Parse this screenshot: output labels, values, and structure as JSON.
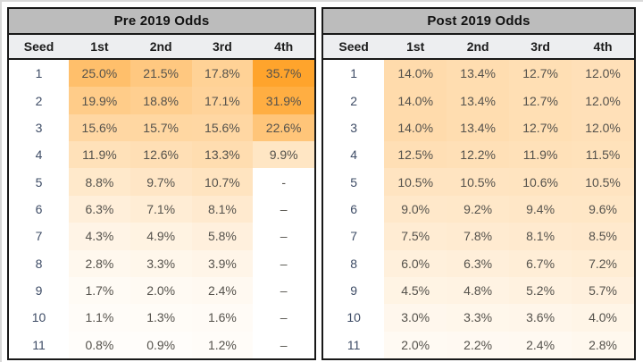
{
  "page": {
    "background": "#ffffff"
  },
  "heatmap": {
    "min_color": "#FFFFFF",
    "max_color": "#FFA42C",
    "scale_max": 35.7
  },
  "colors": {
    "title_bar_bg": "#BCBCBC",
    "header_row_bg": "#EDEEF0",
    "border": "#181818",
    "seed_text": "#3E4C66",
    "value_text": "#55524C"
  },
  "tables": [
    {
      "title": "Pre 2019 Odds",
      "columns": [
        "Seed",
        "1st",
        "2nd",
        "3rd",
        "4th"
      ],
      "rows": [
        {
          "seed": "1",
          "cells": [
            "25.0%",
            "21.5%",
            "17.8%",
            "35.7%"
          ]
        },
        {
          "seed": "2",
          "cells": [
            "19.9%",
            "18.8%",
            "17.1%",
            "31.9%"
          ]
        },
        {
          "seed": "3",
          "cells": [
            "15.6%",
            "15.7%",
            "15.6%",
            "22.6%"
          ]
        },
        {
          "seed": "4",
          "cells": [
            "11.9%",
            "12.6%",
            "13.3%",
            "9.9%"
          ]
        },
        {
          "seed": "5",
          "cells": [
            "8.8%",
            "9.7%",
            "10.7%",
            "-"
          ]
        },
        {
          "seed": "6",
          "cells": [
            "6.3%",
            "7.1%",
            "8.1%",
            "–"
          ]
        },
        {
          "seed": "7",
          "cells": [
            "4.3%",
            "4.9%",
            "5.8%",
            "–"
          ]
        },
        {
          "seed": "8",
          "cells": [
            "2.8%",
            "3.3%",
            "3.9%",
            "–"
          ]
        },
        {
          "seed": "9",
          "cells": [
            "1.7%",
            "2.0%",
            "2.4%",
            "–"
          ]
        },
        {
          "seed": "10",
          "cells": [
            "1.1%",
            "1.3%",
            "1.6%",
            "–"
          ]
        },
        {
          "seed": "11",
          "cells": [
            "0.8%",
            "0.9%",
            "1.2%",
            "–"
          ]
        }
      ]
    },
    {
      "title": "Post 2019 Odds",
      "columns": [
        "Seed",
        "1st",
        "2nd",
        "3rd",
        "4th"
      ],
      "rows": [
        {
          "seed": "1",
          "cells": [
            "14.0%",
            "13.4%",
            "12.7%",
            "12.0%"
          ]
        },
        {
          "seed": "2",
          "cells": [
            "14.0%",
            "13.4%",
            "12.7%",
            "12.0%"
          ]
        },
        {
          "seed": "3",
          "cells": [
            "14.0%",
            "13.4%",
            "12.7%",
            "12.0%"
          ]
        },
        {
          "seed": "4",
          "cells": [
            "12.5%",
            "12.2%",
            "11.9%",
            "11.5%"
          ]
        },
        {
          "seed": "5",
          "cells": [
            "10.5%",
            "10.5%",
            "10.6%",
            "10.5%"
          ]
        },
        {
          "seed": "6",
          "cells": [
            "9.0%",
            "9.2%",
            "9.4%",
            "9.6%"
          ]
        },
        {
          "seed": "7",
          "cells": [
            "7.5%",
            "7.8%",
            "8.1%",
            "8.5%"
          ]
        },
        {
          "seed": "8",
          "cells": [
            "6.0%",
            "6.3%",
            "6.7%",
            "7.2%"
          ]
        },
        {
          "seed": "9",
          "cells": [
            "4.5%",
            "4.8%",
            "5.2%",
            "5.7%"
          ]
        },
        {
          "seed": "10",
          "cells": [
            "3.0%",
            "3.3%",
            "3.6%",
            "4.0%"
          ]
        },
        {
          "seed": "11",
          "cells": [
            "2.0%",
            "2.2%",
            "2.4%",
            "2.8%"
          ]
        }
      ]
    }
  ],
  "chart_data": [
    {
      "type": "heatmap",
      "title": "Pre 2019 Odds",
      "x_categories": [
        "1st",
        "2nd",
        "3rd",
        "4th"
      ],
      "y_label": "Seed",
      "y_categories": [
        1,
        2,
        3,
        4,
        5,
        6,
        7,
        8,
        9,
        10,
        11
      ],
      "values_pct": [
        [
          25.0,
          21.5,
          17.8,
          35.7
        ],
        [
          19.9,
          18.8,
          17.1,
          31.9
        ],
        [
          15.6,
          15.7,
          15.6,
          22.6
        ],
        [
          11.9,
          12.6,
          13.3,
          9.9
        ],
        [
          8.8,
          9.7,
          10.7,
          null
        ],
        [
          6.3,
          7.1,
          8.1,
          null
        ],
        [
          4.3,
          4.9,
          5.8,
          null
        ],
        [
          2.8,
          3.3,
          3.9,
          null
        ],
        [
          1.7,
          2.0,
          2.4,
          null
        ],
        [
          1.1,
          1.3,
          1.6,
          null
        ],
        [
          0.8,
          0.9,
          1.2,
          null
        ]
      ],
      "color_scale": {
        "min_color": "#FFFFFF",
        "max_color": "#FFA42C",
        "domain": [
          0,
          35.7
        ]
      },
      "legend": "none",
      "grid": false
    },
    {
      "type": "heatmap",
      "title": "Post 2019 Odds",
      "x_categories": [
        "1st",
        "2nd",
        "3rd",
        "4th"
      ],
      "y_label": "Seed",
      "y_categories": [
        1,
        2,
        3,
        4,
        5,
        6,
        7,
        8,
        9,
        10,
        11
      ],
      "values_pct": [
        [
          14.0,
          13.4,
          12.7,
          12.0
        ],
        [
          14.0,
          13.4,
          12.7,
          12.0
        ],
        [
          14.0,
          13.4,
          12.7,
          12.0
        ],
        [
          12.5,
          12.2,
          11.9,
          11.5
        ],
        [
          10.5,
          10.5,
          10.6,
          10.5
        ],
        [
          9.0,
          9.2,
          9.4,
          9.6
        ],
        [
          7.5,
          7.8,
          8.1,
          8.5
        ],
        [
          6.0,
          6.3,
          6.7,
          7.2
        ],
        [
          4.5,
          4.8,
          5.2,
          5.7
        ],
        [
          3.0,
          3.3,
          3.6,
          4.0
        ],
        [
          2.0,
          2.2,
          2.4,
          2.8
        ]
      ],
      "color_scale": {
        "min_color": "#FFFFFF",
        "max_color": "#FFA42C",
        "domain": [
          0,
          35.7
        ]
      },
      "legend": "none",
      "grid": false
    }
  ]
}
